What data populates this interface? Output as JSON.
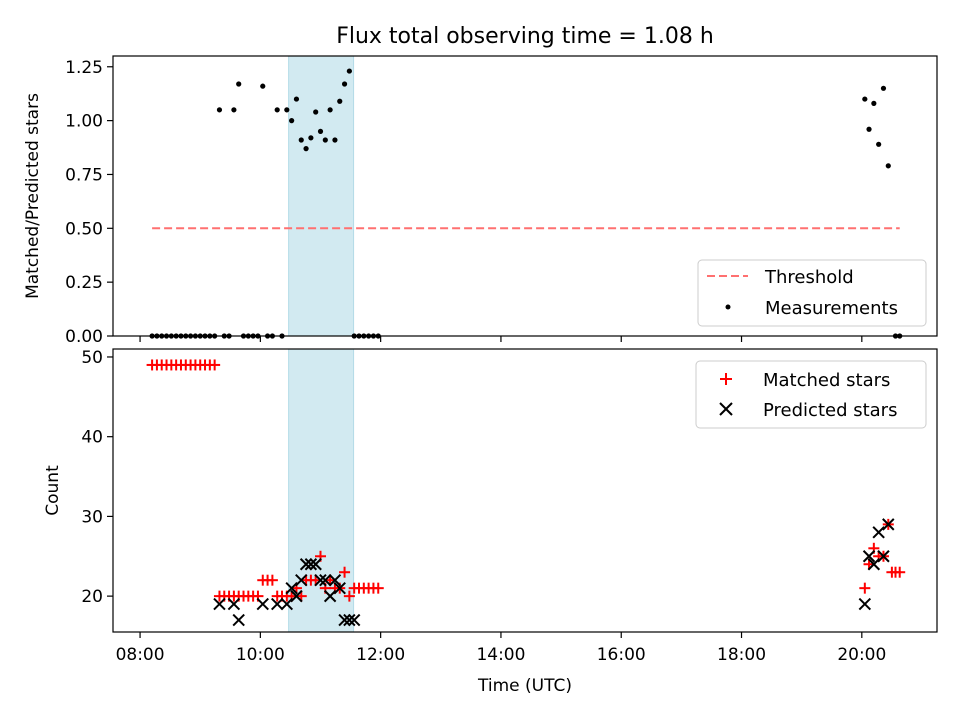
{
  "chart_data": [
    {
      "type": "scatter",
      "title": "Flux total observing time = 1.08 h",
      "xlabel": "",
      "ylabel": "Matched/Predicted stars",
      "xlim": [
        7.55,
        21.25
      ],
      "ylim": [
        0,
        1.3
      ],
      "yticks": [
        0,
        0.25,
        0.5,
        0.75,
        1.0,
        1.25
      ],
      "ytick_labels": [
        "0.00",
        "0.25",
        "0.50",
        "0.75",
        "1.00",
        "1.25"
      ],
      "xticks": [
        8,
        10,
        12,
        14,
        16,
        18,
        20
      ],
      "shaded_interval": {
        "start": 10.47,
        "end": 11.55,
        "color": "#add8e6"
      },
      "threshold": {
        "name": "Threshold",
        "value": 0.5,
        "x_start": 8.2,
        "x_end": 20.63,
        "color": "#ff7070"
      },
      "series": [
        {
          "name": "Measurements",
          "color": "#000000",
          "marker": "dot",
          "x": [
            8.2,
            8.28,
            8.36,
            8.44,
            8.52,
            8.6,
            8.68,
            8.76,
            8.84,
            8.92,
            9.0,
            9.08,
            9.16,
            9.24,
            9.32,
            9.4,
            9.48,
            9.56,
            9.64,
            9.72,
            9.8,
            9.88,
            9.96,
            10.04,
            10.12,
            10.2,
            10.28,
            10.36,
            10.44,
            10.52,
            10.6,
            10.68,
            10.76,
            10.84,
            10.92,
            11.0,
            11.08,
            11.16,
            11.24,
            11.32,
            11.4,
            11.48,
            11.56,
            11.64,
            11.72,
            11.8,
            11.88,
            11.96,
            20.05,
            20.12,
            20.2,
            20.28,
            20.36,
            20.44,
            20.56,
            20.63
          ],
          "y": [
            0,
            0,
            0,
            0,
            0,
            0,
            0,
            0,
            0,
            0,
            0,
            0,
            0,
            0,
            1.05,
            0,
            0,
            1.05,
            1.17,
            0,
            0,
            0,
            0,
            1.16,
            0,
            0,
            1.05,
            0,
            1.05,
            1.0,
            1.1,
            0.91,
            0.87,
            0.92,
            1.04,
            0.95,
            0.91,
            1.05,
            0.91,
            1.09,
            1.17,
            1.23,
            0,
            0,
            0,
            0,
            0,
            0,
            1.1,
            0.96,
            1.08,
            0.89,
            1.15,
            0.79,
            0,
            0
          ]
        }
      ],
      "legend": {
        "placement": "lower-right",
        "entries": [
          "Threshold",
          "Measurements"
        ]
      }
    },
    {
      "type": "scatter",
      "title": "",
      "xlabel": "Time (UTC)",
      "ylabel": "Count",
      "xlim": [
        7.55,
        21.25
      ],
      "ylim": [
        15.5,
        51
      ],
      "yticks": [
        20,
        30,
        40,
        50
      ],
      "xticks": [
        8,
        10,
        12,
        14,
        16,
        18,
        20
      ],
      "xtick_labels": [
        "08:00",
        "10:00",
        "12:00",
        "14:00",
        "16:00",
        "18:00",
        "20:00"
      ],
      "shaded_interval": {
        "start": 10.47,
        "end": 11.55,
        "color": "#add8e6"
      },
      "series": [
        {
          "name": "Matched stars",
          "color": "#ff0000",
          "marker": "plus",
          "x": [
            8.2,
            8.28,
            8.36,
            8.44,
            8.52,
            8.6,
            8.68,
            8.76,
            8.84,
            8.92,
            9.0,
            9.08,
            9.16,
            9.24,
            9.32,
            9.4,
            9.48,
            9.56,
            9.64,
            9.72,
            9.8,
            9.88,
            9.96,
            10.04,
            10.12,
            10.2,
            10.28,
            10.36,
            10.44,
            10.52,
            10.6,
            10.68,
            10.76,
            10.84,
            10.92,
            11.0,
            11.08,
            11.16,
            11.24,
            11.32,
            11.4,
            11.48,
            11.56,
            11.64,
            11.72,
            11.8,
            11.88,
            11.96,
            20.05,
            20.12,
            20.2,
            20.28,
            20.36,
            20.44,
            20.5,
            20.56,
            20.63
          ],
          "y": [
            49,
            49,
            49,
            49,
            49,
            49,
            49,
            49,
            49,
            49,
            49,
            49,
            49,
            49,
            20,
            20,
            20,
            20,
            20,
            20,
            20,
            20,
            20,
            22,
            22,
            22,
            20,
            20,
            20,
            20,
            21,
            20,
            22,
            22,
            22,
            25,
            21,
            22,
            21,
            21,
            23,
            20,
            21,
            21,
            21,
            21,
            21,
            21,
            21,
            24,
            26,
            25,
            25,
            29,
            23,
            23,
            23
          ]
        },
        {
          "name": "Predicted stars",
          "color": "#000000",
          "marker": "x",
          "x": [
            9.32,
            9.56,
            9.64,
            10.04,
            10.28,
            10.44,
            10.52,
            10.6,
            10.68,
            10.76,
            10.84,
            10.92,
            11.0,
            11.08,
            11.16,
            11.24,
            11.32,
            11.4,
            11.48,
            11.56,
            20.05,
            20.12,
            20.2,
            20.28,
            20.36,
            20.44
          ],
          "y": [
            19,
            19,
            17,
            19,
            19,
            19,
            21,
            20,
            22,
            24,
            24,
            24,
            22,
            22,
            20,
            22,
            21,
            17,
            17,
            17,
            19,
            25,
            24,
            28,
            25,
            29
          ]
        }
      ],
      "legend": {
        "placement": "upper-right",
        "entries": [
          "Matched stars",
          "Predicted stars"
        ]
      }
    }
  ]
}
